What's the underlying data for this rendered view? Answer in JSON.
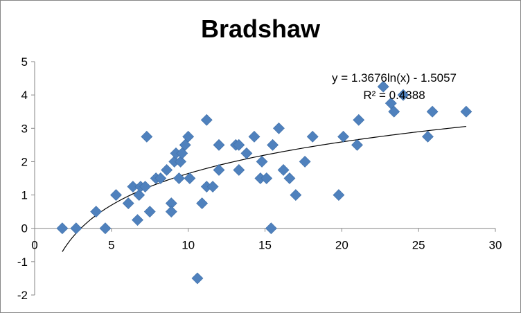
{
  "chart_data": {
    "type": "scatter",
    "title": "Bradshaw",
    "xlabel": "",
    "ylabel": "",
    "xlim": [
      0,
      30
    ],
    "ylim": [
      -2,
      5
    ],
    "x_ticks": [
      0,
      5,
      10,
      15,
      20,
      25,
      30
    ],
    "y_ticks": [
      -2,
      -1,
      0,
      1,
      2,
      3,
      4,
      5
    ],
    "grid": false,
    "legend": "none",
    "marker_color": "#4F81BD",
    "trendline_color": "#000000",
    "points": [
      {
        "x": 1.8,
        "y": 0
      },
      {
        "x": 2.7,
        "y": 0
      },
      {
        "x": 4.0,
        "y": 0.5
      },
      {
        "x": 4.6,
        "y": 0
      },
      {
        "x": 5.3,
        "y": 1.0
      },
      {
        "x": 6.1,
        "y": 0.75
      },
      {
        "x": 6.4,
        "y": 1.25
      },
      {
        "x": 6.7,
        "y": 0.25
      },
      {
        "x": 6.8,
        "y": 1.0
      },
      {
        "x": 6.9,
        "y": 1.25
      },
      {
        "x": 7.2,
        "y": 1.25
      },
      {
        "x": 7.3,
        "y": 2.75
      },
      {
        "x": 7.5,
        "y": 0.5
      },
      {
        "x": 7.9,
        "y": 1.5
      },
      {
        "x": 8.2,
        "y": 1.5
      },
      {
        "x": 8.6,
        "y": 1.75
      },
      {
        "x": 8.9,
        "y": 0.75
      },
      {
        "x": 8.9,
        "y": 0.5
      },
      {
        "x": 9.1,
        "y": 2.0
      },
      {
        "x": 9.2,
        "y": 2.25
      },
      {
        "x": 9.4,
        "y": 1.5
      },
      {
        "x": 9.5,
        "y": 2.0
      },
      {
        "x": 9.6,
        "y": 2.25
      },
      {
        "x": 9.8,
        "y": 2.5
      },
      {
        "x": 10.0,
        "y": 2.75
      },
      {
        "x": 10.1,
        "y": 1.5
      },
      {
        "x": 10.6,
        "y": -1.5
      },
      {
        "x": 10.9,
        "y": 0.75
      },
      {
        "x": 11.2,
        "y": 3.25
      },
      {
        "x": 11.2,
        "y": 1.25
      },
      {
        "x": 11.6,
        "y": 1.25
      },
      {
        "x": 12.0,
        "y": 2.5
      },
      {
        "x": 12.0,
        "y": 1.75
      },
      {
        "x": 13.1,
        "y": 2.5
      },
      {
        "x": 13.3,
        "y": 2.5
      },
      {
        "x": 13.3,
        "y": 1.75
      },
      {
        "x": 13.8,
        "y": 2.25
      },
      {
        "x": 14.3,
        "y": 2.75
      },
      {
        "x": 14.7,
        "y": 1.5
      },
      {
        "x": 14.8,
        "y": 2.0
      },
      {
        "x": 15.1,
        "y": 1.5
      },
      {
        "x": 15.4,
        "y": 0
      },
      {
        "x": 15.5,
        "y": 2.5
      },
      {
        "x": 15.9,
        "y": 3.0
      },
      {
        "x": 16.2,
        "y": 1.75
      },
      {
        "x": 16.6,
        "y": 1.5
      },
      {
        "x": 17.0,
        "y": 1.0
      },
      {
        "x": 17.6,
        "y": 2.0
      },
      {
        "x": 18.1,
        "y": 2.75
      },
      {
        "x": 19.8,
        "y": 1.0
      },
      {
        "x": 20.1,
        "y": 2.75
      },
      {
        "x": 21.0,
        "y": 2.5
      },
      {
        "x": 21.1,
        "y": 3.25
      },
      {
        "x": 22.7,
        "y": 4.25
      },
      {
        "x": 23.2,
        "y": 3.75
      },
      {
        "x": 23.4,
        "y": 3.5
      },
      {
        "x": 24.0,
        "y": 4.0
      },
      {
        "x": 25.6,
        "y": 2.75
      },
      {
        "x": 25.9,
        "y": 3.5
      },
      {
        "x": 28.1,
        "y": 3.5
      }
    ],
    "trendline": {
      "type": "logarithmic",
      "a": 1.3676,
      "b": -1.5057,
      "x_range": [
        1.8,
        28.1
      ],
      "equation_label": "y = 1.3676ln(x) - 1.5057",
      "r2_label": "R² = 0.4388"
    }
  }
}
